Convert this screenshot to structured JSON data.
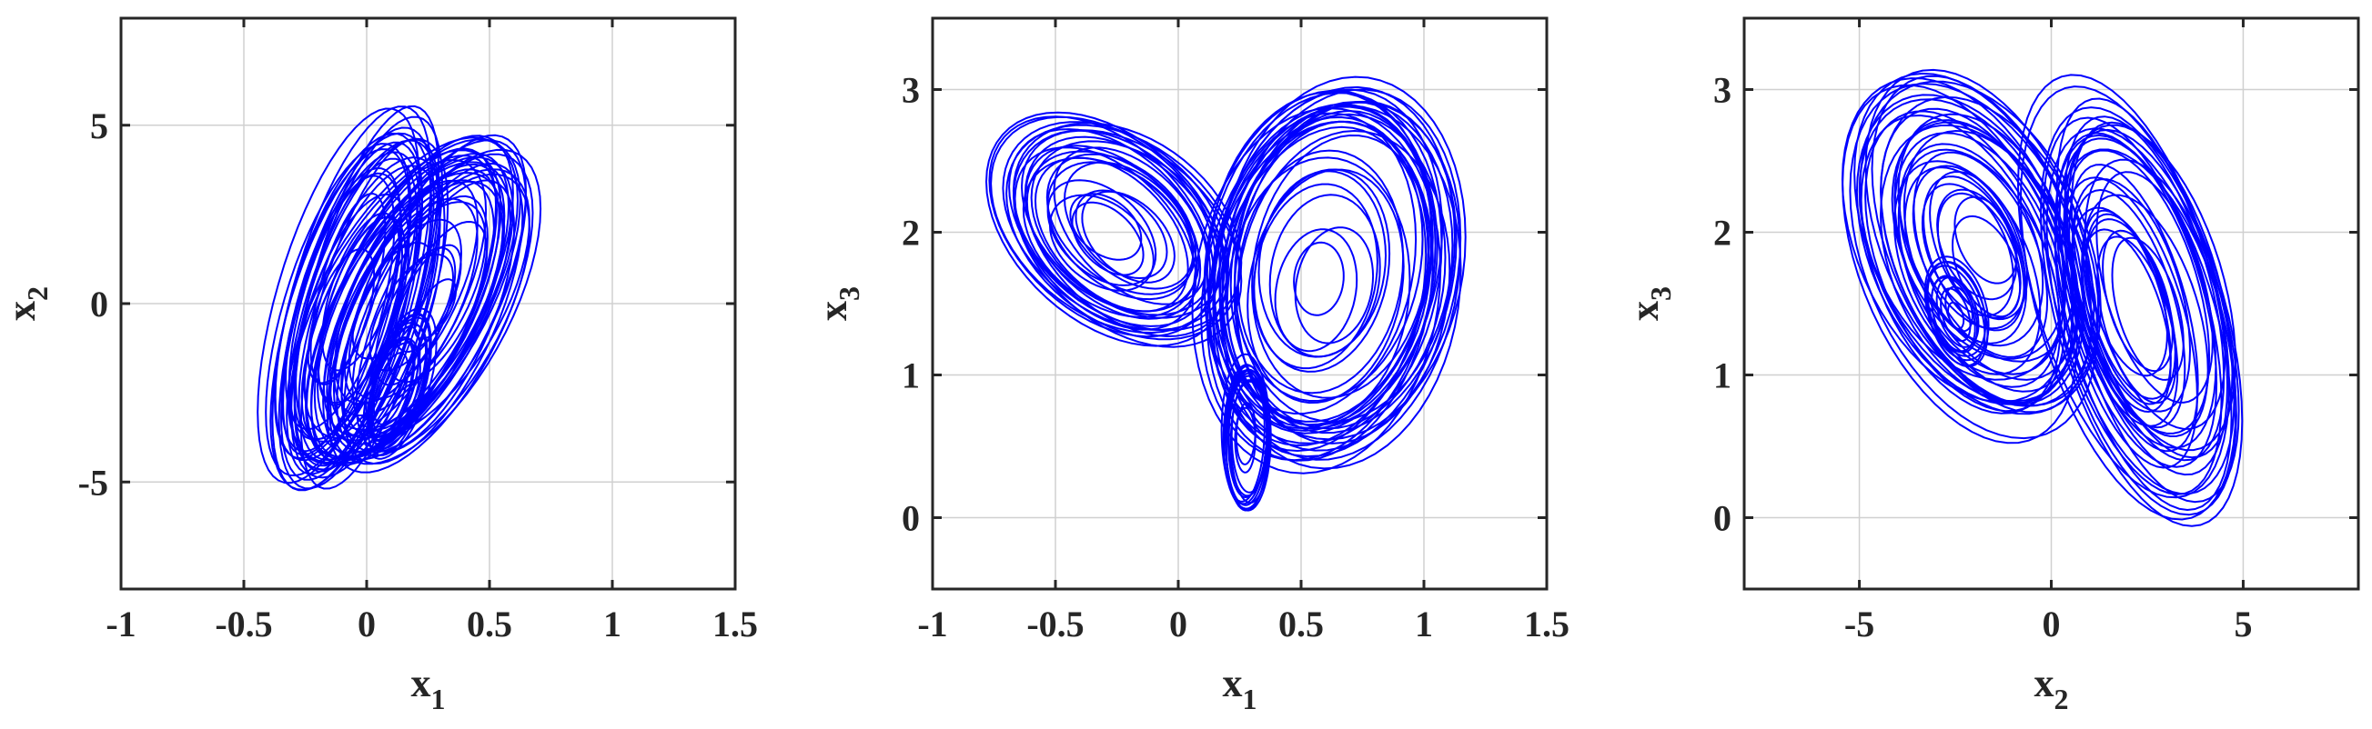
{
  "chart_data": [
    {
      "type": "line",
      "x": {
        "name": "x",
        "sub": "1",
        "lim": [
          -1,
          1.5
        ],
        "ticks": [
          -1,
          -0.5,
          0,
          0.5,
          1,
          1.5
        ],
        "tick_labels": [
          "-1",
          "-0.5",
          "0",
          "0.5",
          "1",
          "1.5"
        ]
      },
      "y": {
        "name": "x",
        "sub": "2",
        "lim": [
          -8,
          8
        ],
        "ticks": [
          -5,
          0,
          5
        ],
        "tick_labels": [
          "-5",
          "0",
          "5"
        ]
      },
      "grid": true,
      "line_color": "#0000ff",
      "series_desc": "phase portrait x1 vs x2 (chaotic attractor trajectory)"
    },
    {
      "type": "line",
      "x": {
        "name": "x",
        "sub": "1",
        "lim": [
          -1,
          1.5
        ],
        "ticks": [
          -1,
          -0.5,
          0,
          0.5,
          1,
          1.5
        ],
        "tick_labels": [
          "-1",
          "-0.5",
          "0",
          "0.5",
          "1",
          "1.5"
        ]
      },
      "y": {
        "name": "x",
        "sub": "3",
        "lim": [
          -0.5,
          3.5
        ],
        "ticks": [
          0,
          1,
          2,
          3
        ],
        "tick_labels": [
          "0",
          "1",
          "2",
          "3"
        ]
      },
      "grid": true,
      "line_color": "#0000ff",
      "series_desc": "phase portrait x1 vs x3 (chaotic attractor trajectory)"
    },
    {
      "type": "line",
      "x": {
        "name": "x",
        "sub": "2",
        "lim": [
          -8,
          8
        ],
        "ticks": [
          -5,
          0,
          5
        ],
        "tick_labels": [
          "-5",
          "0",
          "5"
        ]
      },
      "y": {
        "name": "x",
        "sub": "3",
        "lim": [
          -0.5,
          3.5
        ],
        "ticks": [
          0,
          1,
          2,
          3
        ],
        "tick_labels": [
          "0",
          "1",
          "2",
          "3"
        ]
      },
      "grid": true,
      "line_color": "#0000ff",
      "series_desc": "phase portrait x2 vs x3 (chaotic attractor trajectory)"
    }
  ]
}
